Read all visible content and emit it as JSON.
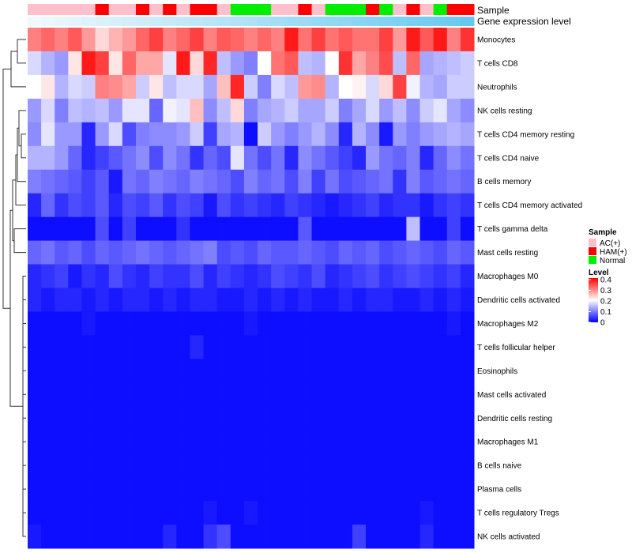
{
  "chart_data": {
    "type": "heatmap",
    "annotation_labels": {
      "sample": "Sample",
      "expression": "Gene expression level"
    },
    "sample_legend": {
      "title": "Sample",
      "entries": [
        {
          "label": "AC(+)",
          "color": "#ffc0cb"
        },
        {
          "label": "HAM(+)",
          "color": "#ff0000"
        },
        {
          "label": "Normal",
          "color": "#00ee00"
        }
      ]
    },
    "level_legend": {
      "title": "Level",
      "ticks": [
        "0.4",
        "0.3",
        "0.2",
        "0.1",
        "0"
      ],
      "range": [
        0,
        0.4
      ],
      "colors": {
        "low": "#0000ff",
        "mid": "#ffffff",
        "high": "#ff0000"
      }
    },
    "samples": [
      "AC",
      "AC",
      "AC",
      "AC",
      "AC",
      "HAM",
      "AC",
      "AC",
      "HAM",
      "AC",
      "HAM",
      "AC",
      "HAM",
      "HAM",
      "AC",
      "Normal",
      "Normal",
      "Normal",
      "AC",
      "AC",
      "HAM",
      "AC",
      "Normal",
      "Normal",
      "Normal",
      "HAM",
      "Normal",
      "AC",
      "HAM",
      "AC",
      "Normal",
      "HAM",
      "HAM"
    ],
    "expression_level": [
      0.0,
      0.03,
      0.06,
      0.09,
      0.12,
      0.15,
      0.18,
      0.21,
      0.24,
      0.27,
      0.3,
      0.33,
      0.36,
      0.39,
      0.42,
      0.45,
      0.48,
      0.52,
      0.55,
      0.58,
      0.61,
      0.64,
      0.67,
      0.7,
      0.73,
      0.76,
      0.79,
      0.82,
      0.85,
      0.88,
      0.91,
      0.94,
      1.0
    ],
    "rows": [
      "Monocytes",
      "T cells CD8",
      "Neutrophils",
      "NK cells resting",
      "T cells CD4 memory resting",
      "T cells CD4 naive",
      "B cells memory",
      "T cells CD4 memory activated",
      "T cells gamma delta",
      "Mast cells resting",
      "Macrophages M0",
      "Dendritic cells activated",
      "Macrophages M2",
      "T cells follicular helper",
      "Eosinophils",
      "Mast cells activated",
      "Dendritic cells resting",
      "Macrophages M1",
      "B cells naive",
      "Plasma cells",
      "T cells regulatory  Tregs",
      "NK cells activated"
    ],
    "values": [
      [
        0.3,
        0.32,
        0.3,
        0.33,
        0.28,
        0.23,
        0.26,
        0.28,
        0.32,
        0.35,
        0.3,
        0.32,
        0.35,
        0.3,
        0.33,
        0.32,
        0.3,
        0.32,
        0.3,
        0.38,
        0.31,
        0.35,
        0.31,
        0.33,
        0.31,
        0.31,
        0.35,
        0.28,
        0.38,
        0.33,
        0.38,
        0.3,
        0.36
      ],
      [
        0.17,
        0.14,
        0.12,
        0.22,
        0.38,
        0.35,
        0.22,
        0.32,
        0.27,
        0.27,
        0.18,
        0.38,
        0.23,
        0.37,
        0.15,
        0.12,
        0.1,
        0.2,
        0.31,
        0.33,
        0.15,
        0.14,
        0.2,
        0.36,
        0.27,
        0.3,
        0.34,
        0.15,
        0.32,
        0.13,
        0.14,
        0.15,
        0.16
      ],
      [
        0.2,
        0.22,
        0.14,
        0.17,
        0.16,
        0.3,
        0.29,
        0.27,
        0.16,
        0.22,
        0.15,
        0.17,
        0.17,
        0.13,
        0.25,
        0.37,
        0.16,
        0.1,
        0.17,
        0.15,
        0.28,
        0.29,
        0.14,
        0.2,
        0.21,
        0.17,
        0.23,
        0.35,
        0.19,
        0.14,
        0.13,
        0.16,
        0.16
      ],
      [
        0.12,
        0.17,
        0.1,
        0.15,
        0.14,
        0.15,
        0.12,
        0.18,
        0.18,
        0.08,
        0.19,
        0.18,
        0.25,
        0.11,
        0.15,
        0.23,
        0.1,
        0.13,
        0.14,
        0.16,
        0.13,
        0.13,
        0.16,
        0.1,
        0.13,
        0.17,
        0.12,
        0.15,
        0.11,
        0.16,
        0.18,
        0.13,
        0.11
      ],
      [
        0.11,
        0.18,
        0.12,
        0.12,
        0.03,
        0.12,
        0.17,
        0.06,
        0.1,
        0.11,
        0.11,
        0.12,
        0.16,
        0.05,
        0.13,
        0.14,
        0.01,
        0.16,
        0.12,
        0.1,
        0.12,
        0.14,
        0.11,
        0.03,
        0.14,
        0.11,
        0.02,
        0.12,
        0.1,
        0.12,
        0.13,
        0.14,
        0.13
      ],
      [
        0.14,
        0.14,
        0.12,
        0.08,
        0.03,
        0.05,
        0.07,
        0.09,
        0.11,
        0.06,
        0.11,
        0.09,
        0.04,
        0.08,
        0.06,
        0.18,
        0.09,
        0.06,
        0.09,
        0.03,
        0.11,
        0.09,
        0.07,
        0.05,
        0.03,
        0.12,
        0.09,
        0.08,
        0.1,
        0.03,
        0.08,
        0.11,
        0.09
      ],
      [
        0.1,
        0.09,
        0.08,
        0.07,
        0.05,
        0.07,
        0.02,
        0.09,
        0.08,
        0.1,
        0.09,
        0.08,
        0.1,
        0.09,
        0.08,
        0.06,
        0.1,
        0.08,
        0.09,
        0.06,
        0.1,
        0.05,
        0.09,
        0.06,
        0.07,
        0.08,
        0.09,
        0.04,
        0.1,
        0.07,
        0.08,
        0.09,
        0.08
      ],
      [
        0.03,
        0.08,
        0.04,
        0.06,
        0.05,
        0.07,
        0.03,
        0.06,
        0.05,
        0.07,
        0.04,
        0.06,
        0.05,
        0.02,
        0.06,
        0.04,
        0.05,
        0.04,
        0.03,
        0.05,
        0.04,
        0.03,
        0.02,
        0.03,
        0.04,
        0.05,
        0.03,
        0.04,
        0.04,
        0.02,
        0.04,
        0.05,
        0.04
      ],
      [
        0.01,
        0.01,
        0.01,
        0.01,
        0.01,
        0.06,
        0.01,
        0.05,
        0.01,
        0.01,
        0.01,
        0.04,
        0.01,
        0.01,
        0.01,
        0.01,
        0.01,
        0.01,
        0.01,
        0.01,
        0.07,
        0.01,
        0.01,
        0.01,
        0.01,
        0.01,
        0.01,
        0.01,
        0.15,
        0.01,
        0.01,
        0.05,
        0.01
      ],
      [
        0.08,
        0.09,
        0.07,
        0.08,
        0.06,
        0.08,
        0.07,
        0.08,
        0.09,
        0.08,
        0.07,
        0.08,
        0.09,
        0.1,
        0.06,
        0.07,
        0.06,
        0.08,
        0.07,
        0.07,
        0.08,
        0.07,
        0.06,
        0.08,
        0.07,
        0.08,
        0.06,
        0.07,
        0.08,
        0.07,
        0.06,
        0.08,
        0.07
      ],
      [
        0.03,
        0.04,
        0.05,
        0.02,
        0.04,
        0.03,
        0.06,
        0.04,
        0.03,
        0.05,
        0.04,
        0.04,
        0.06,
        0.03,
        0.05,
        0.04,
        0.03,
        0.04,
        0.06,
        0.05,
        0.04,
        0.06,
        0.03,
        0.04,
        0.05,
        0.06,
        0.04,
        0.05,
        0.06,
        0.05,
        0.04,
        0.05,
        0.03
      ],
      [
        0.03,
        0.02,
        0.03,
        0.03,
        0.02,
        0.03,
        0.02,
        0.03,
        0.03,
        0.02,
        0.03,
        0.02,
        0.03,
        0.03,
        0.02,
        0.02,
        0.03,
        0.02,
        0.03,
        0.02,
        0.03,
        0.02,
        0.02,
        0.03,
        0.02,
        0.03,
        0.03,
        0.02,
        0.02,
        0.03,
        0.02,
        0.03,
        0.02
      ],
      [
        0.01,
        0.01,
        0.01,
        0.01,
        0.02,
        0.01,
        0.01,
        0.01,
        0.01,
        0.01,
        0.01,
        0.01,
        0.01,
        0.01,
        0.01,
        0.01,
        0.02,
        0.01,
        0.01,
        0.01,
        0.01,
        0.01,
        0.01,
        0.01,
        0.01,
        0.01,
        0.01,
        0.01,
        0.01,
        0.01,
        0.01,
        0.02,
        0.01
      ],
      [
        0.01,
        0.01,
        0.01,
        0.01,
        0.01,
        0.01,
        0.01,
        0.01,
        0.01,
        0.01,
        0.01,
        0.01,
        0.03,
        0.01,
        0.01,
        0.01,
        0.01,
        0.01,
        0.01,
        0.01,
        0.01,
        0.01,
        0.01,
        0.01,
        0.01,
        0.01,
        0.01,
        0.01,
        0.01,
        0.01,
        0.01,
        0.01,
        0.01
      ],
      [
        0.01,
        0.01,
        0.01,
        0.01,
        0.01,
        0.01,
        0.01,
        0.01,
        0.01,
        0.01,
        0.01,
        0.01,
        0.01,
        0.01,
        0.01,
        0.01,
        0.01,
        0.01,
        0.01,
        0.01,
        0.01,
        0.01,
        0.01,
        0.01,
        0.01,
        0.01,
        0.01,
        0.01,
        0.01,
        0.01,
        0.01,
        0.01,
        0.01
      ],
      [
        0.01,
        0.01,
        0.01,
        0.01,
        0.01,
        0.01,
        0.01,
        0.01,
        0.01,
        0.01,
        0.01,
        0.01,
        0.01,
        0.01,
        0.01,
        0.01,
        0.01,
        0.01,
        0.01,
        0.01,
        0.01,
        0.01,
        0.01,
        0.01,
        0.01,
        0.01,
        0.01,
        0.01,
        0.01,
        0.01,
        0.01,
        0.01,
        0.01
      ],
      [
        0.01,
        0.01,
        0.01,
        0.01,
        0.01,
        0.01,
        0.01,
        0.01,
        0.01,
        0.01,
        0.01,
        0.01,
        0.01,
        0.01,
        0.01,
        0.01,
        0.01,
        0.01,
        0.01,
        0.01,
        0.01,
        0.01,
        0.01,
        0.01,
        0.01,
        0.01,
        0.01,
        0.01,
        0.01,
        0.01,
        0.01,
        0.01,
        0.01
      ],
      [
        0.01,
        0.01,
        0.01,
        0.01,
        0.01,
        0.01,
        0.01,
        0.01,
        0.01,
        0.01,
        0.01,
        0.01,
        0.01,
        0.01,
        0.01,
        0.01,
        0.01,
        0.01,
        0.01,
        0.01,
        0.01,
        0.01,
        0.01,
        0.01,
        0.01,
        0.01,
        0.01,
        0.01,
        0.01,
        0.01,
        0.01,
        0.01,
        0.01
      ],
      [
        0.01,
        0.01,
        0.01,
        0.01,
        0.01,
        0.01,
        0.01,
        0.01,
        0.01,
        0.01,
        0.01,
        0.01,
        0.01,
        0.01,
        0.01,
        0.01,
        0.01,
        0.01,
        0.01,
        0.01,
        0.01,
        0.01,
        0.01,
        0.01,
        0.01,
        0.01,
        0.01,
        0.01,
        0.01,
        0.01,
        0.01,
        0.01,
        0.01
      ],
      [
        0.01,
        0.01,
        0.01,
        0.01,
        0.01,
        0.01,
        0.01,
        0.01,
        0.01,
        0.01,
        0.01,
        0.01,
        0.01,
        0.01,
        0.01,
        0.01,
        0.01,
        0.01,
        0.01,
        0.01,
        0.01,
        0.01,
        0.01,
        0.01,
        0.01,
        0.01,
        0.01,
        0.01,
        0.01,
        0.01,
        0.01,
        0.01,
        0.01
      ],
      [
        0.01,
        0.01,
        0.01,
        0.01,
        0.01,
        0.01,
        0.01,
        0.01,
        0.01,
        0.01,
        0.01,
        0.01,
        0.01,
        0.02,
        0.01,
        0.01,
        0.02,
        0.01,
        0.01,
        0.01,
        0.01,
        0.01,
        0.01,
        0.01,
        0.01,
        0.01,
        0.01,
        0.01,
        0.01,
        0.02,
        0.01,
        0.01,
        0.01
      ],
      [
        0.02,
        0.01,
        0.01,
        0.01,
        0.01,
        0.01,
        0.01,
        0.01,
        0.01,
        0.01,
        0.03,
        0.01,
        0.01,
        0.04,
        0.06,
        0.01,
        0.01,
        0.01,
        0.01,
        0.01,
        0.01,
        0.01,
        0.01,
        0.01,
        0.05,
        0.01,
        0.01,
        0.01,
        0.01,
        0.03,
        0.01,
        0.01,
        0.01
      ]
    ]
  }
}
